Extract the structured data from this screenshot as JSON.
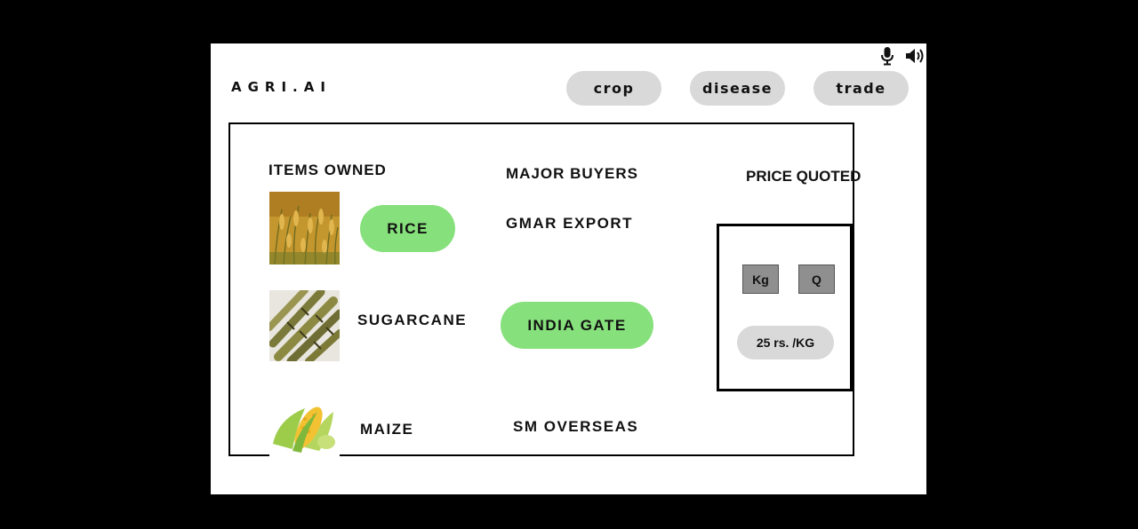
{
  "app": {
    "logo": "AGRI.AI"
  },
  "toolbar": {
    "mic_icon": "microphone-icon",
    "speaker_icon": "speaker-icon"
  },
  "nav": {
    "tabs": [
      {
        "label": "crop"
      },
      {
        "label": "disease"
      },
      {
        "label": "trade"
      }
    ]
  },
  "main": {
    "headers": {
      "items_owned": "ITEMS OWNED",
      "major_buyers": "MAJOR BUYERS",
      "price_quoted": "PRICE QUOTED"
    },
    "items": [
      {
        "label": "RICE"
      },
      {
        "label": "SUGARCANE"
      },
      {
        "label": "MAIZE"
      }
    ],
    "buyers": [
      {
        "label": "GMAR EXPORT"
      },
      {
        "label": "INDIA GATE"
      },
      {
        "label": "SM OVERSEAS"
      }
    ],
    "price": {
      "units": [
        "Kg",
        "Q"
      ],
      "value": "25 rs. /KG"
    }
  },
  "colors": {
    "accent": "#86e07b",
    "pill": "#d9d9d9",
    "unit_button": "#8f8f8f"
  }
}
